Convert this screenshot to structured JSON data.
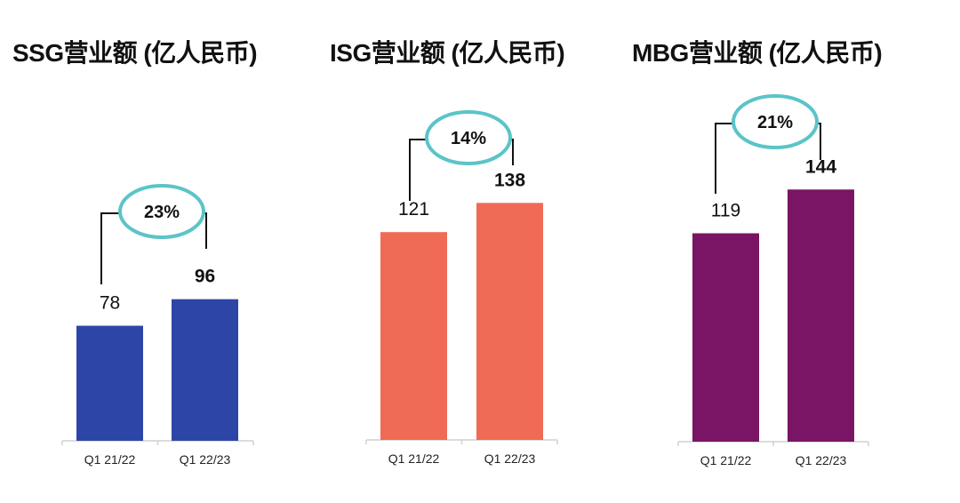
{
  "chart_data": [
    {
      "type": "bar",
      "title": "SSG营业额 (亿人民币)",
      "categories": [
        "Q1 21/22",
        "Q1 22/23"
      ],
      "values": [
        78,
        96
      ],
      "growth_label": "23%",
      "color": "#2e45a8",
      "ylim": [
        0,
        241
      ],
      "grid": false
    },
    {
      "type": "bar",
      "title": "ISG营业额 (亿人民币)",
      "categories": [
        "Q1 21/22",
        "Q1 22/23"
      ],
      "values": [
        121,
        138
      ],
      "growth_label": "14%",
      "color": "#f06b55",
      "ylim": [
        0,
        207
      ],
      "grid": false
    },
    {
      "type": "bar",
      "title": "MBG营业额 (亿人民币)",
      "categories": [
        "Q1 21/22",
        "Q1 22/23"
      ],
      "values": [
        119,
        144
      ],
      "growth_label": "21%",
      "color": "#7a1464",
      "ylim": [
        0,
        203
      ],
      "grid": false
    }
  ],
  "colors": {
    "growth_ellipse": "#5bc4c8",
    "axis": "#d0d0d0"
  }
}
